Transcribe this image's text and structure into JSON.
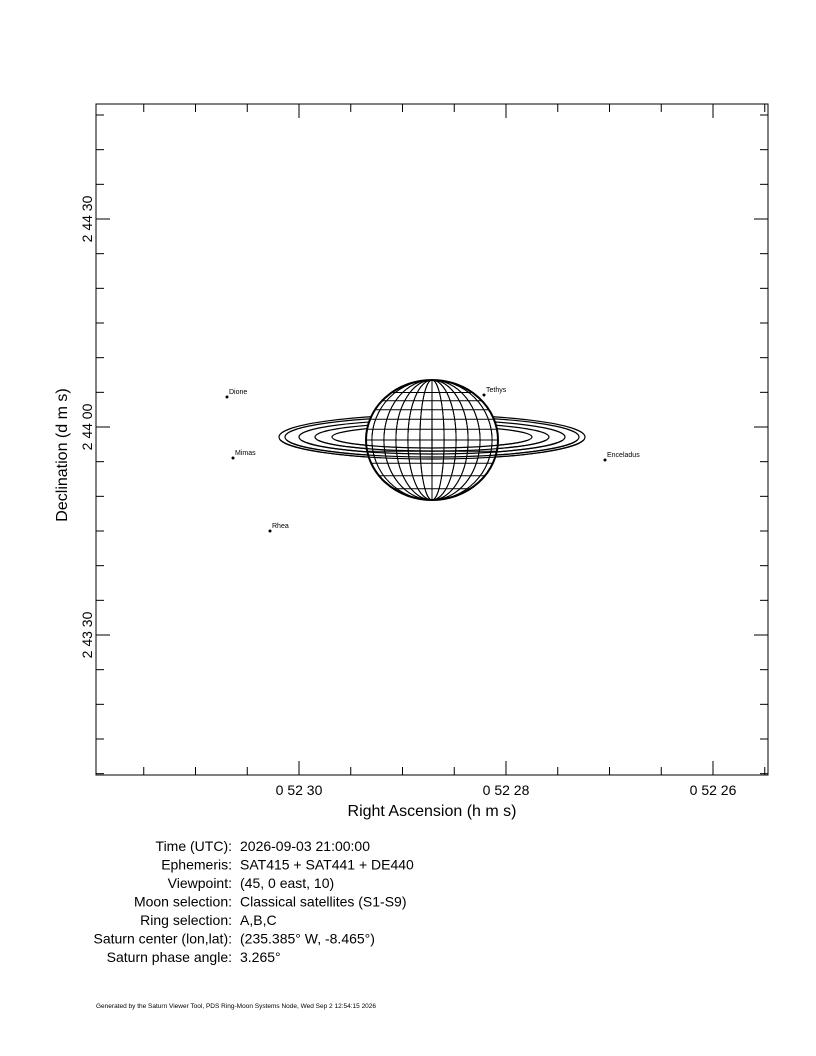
{
  "plot": {
    "x_label": "Right Ascension (h m s)",
    "y_label": "Declination (d m s)",
    "x_ticks": [
      "0 52 30",
      "0 52 28",
      "0 52 26"
    ],
    "y_ticks": [
      "2 44 30",
      "2 44 00",
      "2 43 30"
    ],
    "moons": [
      {
        "label": "Dione"
      },
      {
        "label": "Tethys"
      },
      {
        "label": "Mimas"
      },
      {
        "label": "Enceladus"
      },
      {
        "label": "Rhea"
      }
    ]
  },
  "info": [
    [
      "Time (UTC):",
      "2026-09-03 21:00:00"
    ],
    [
      "Ephemeris:",
      "SAT415 + SAT441 + DE440"
    ],
    [
      "Viewpoint:",
      "(45, 0 east, 10)"
    ],
    [
      "Moon selection:",
      "Classical satellites (S1-S9)"
    ],
    [
      "Ring selection:",
      "A,B,C"
    ],
    [
      "Saturn center (lon,lat):",
      "(235.385° W, -8.465°)"
    ],
    [
      "Saturn phase angle:",
      "  3.265°"
    ]
  ],
  "footer": "Generated by the Saturn Viewer Tool, PDS Ring-Moon Systems Node, Wed Sep  2 12:54:15 2026"
}
